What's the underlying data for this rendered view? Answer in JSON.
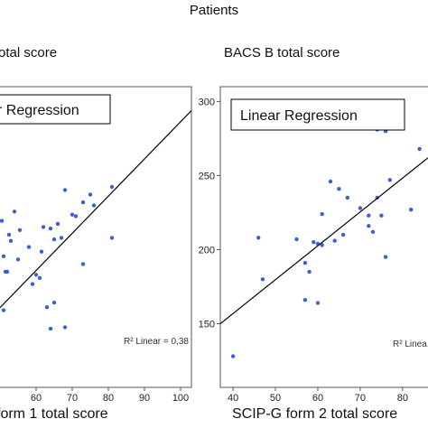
{
  "header": {
    "title": "Patients"
  },
  "chart_data": [
    {
      "type": "scatter",
      "title": "otal score",
      "xlabel": "form 1 total score",
      "ylabel": "",
      "xlim": [
        50,
        103
      ],
      "ylim": [
        115,
        310
      ],
      "xticks": [
        60,
        70,
        80,
        90,
        100
      ],
      "yticks": [],
      "legend": "r Regression",
      "legend_placement": "top-left",
      "annotation": "R² Linear = 0,38",
      "grid": false,
      "marker_color": "#3c5fd8",
      "line_color": "#000000",
      "regression": {
        "x": [
          50,
          103
        ],
        "y": [
          166.7,
          294.5
        ]
      },
      "points": [
        {
          "x": 50.5,
          "y": 223
        },
        {
          "x": 51,
          "y": 200
        },
        {
          "x": 51.5,
          "y": 190
        },
        {
          "x": 52,
          "y": 190
        },
        {
          "x": 52.5,
          "y": 214
        },
        {
          "x": 51,
          "y": 165
        },
        {
          "x": 53,
          "y": 210
        },
        {
          "x": 55,
          "y": 198
        },
        {
          "x": 54,
          "y": 229
        },
        {
          "x": 55.5,
          "y": 217
        },
        {
          "x": 58,
          "y": 206
        },
        {
          "x": 59,
          "y": 182
        },
        {
          "x": 61,
          "y": 186
        },
        {
          "x": 61.5,
          "y": 203
        },
        {
          "x": 60,
          "y": 188
        },
        {
          "x": 62,
          "y": 219
        },
        {
          "x": 63,
          "y": 167
        },
        {
          "x": 64,
          "y": 153
        },
        {
          "x": 64,
          "y": 218
        },
        {
          "x": 65,
          "y": 211
        },
        {
          "x": 66,
          "y": 221
        },
        {
          "x": 67,
          "y": 212
        },
        {
          "x": 68,
          "y": 154
        },
        {
          "x": 68,
          "y": 243
        },
        {
          "x": 70,
          "y": 227
        },
        {
          "x": 71,
          "y": 226
        },
        {
          "x": 73,
          "y": 235
        },
        {
          "x": 73,
          "y": 195
        },
        {
          "x": 75,
          "y": 240
        },
        {
          "x": 76,
          "y": 233
        },
        {
          "x": 81,
          "y": 245
        },
        {
          "x": 81,
          "y": 212
        },
        {
          "x": 65,
          "y": 170
        }
      ]
    },
    {
      "type": "scatter",
      "title": "BACS B total score",
      "xlabel": "SCIP-G form 2 total score",
      "ylabel": "",
      "xlim": [
        37,
        86
      ],
      "ylim": [
        107,
        310
      ],
      "xticks": [
        40,
        50,
        60,
        70,
        80
      ],
      "yticks": [
        150,
        200,
        250,
        300
      ],
      "legend": "Linear Regression",
      "legend_placement": "top-left",
      "annotation": "R² Linea",
      "grid": false,
      "marker_color": "#3c5fd8",
      "line_color": "#000000",
      "regression": {
        "x": [
          37,
          86
        ],
        "y": [
          150,
          262
        ]
      },
      "points": [
        {
          "x": 40,
          "y": 128
        },
        {
          "x": 46,
          "y": 208
        },
        {
          "x": 47,
          "y": 180
        },
        {
          "x": 55,
          "y": 207
        },
        {
          "x": 57,
          "y": 191
        },
        {
          "x": 57,
          "y": 166
        },
        {
          "x": 58,
          "y": 185
        },
        {
          "x": 59,
          "y": 205
        },
        {
          "x": 60,
          "y": 164
        },
        {
          "x": 60,
          "y": 204
        },
        {
          "x": 61,
          "y": 224
        },
        {
          "x": 61,
          "y": 203
        },
        {
          "x": 63,
          "y": 246
        },
        {
          "x": 64,
          "y": 206
        },
        {
          "x": 65,
          "y": 241
        },
        {
          "x": 66,
          "y": 210
        },
        {
          "x": 67,
          "y": 235
        },
        {
          "x": 70,
          "y": 228
        },
        {
          "x": 72,
          "y": 216
        },
        {
          "x": 72,
          "y": 223
        },
        {
          "x": 73,
          "y": 212
        },
        {
          "x": 74,
          "y": 235
        },
        {
          "x": 74,
          "y": 281
        },
        {
          "x": 75,
          "y": 223
        },
        {
          "x": 76,
          "y": 195
        },
        {
          "x": 76,
          "y": 280
        },
        {
          "x": 77,
          "y": 247
        },
        {
          "x": 82,
          "y": 227
        },
        {
          "x": 84,
          "y": 268
        }
      ]
    }
  ]
}
